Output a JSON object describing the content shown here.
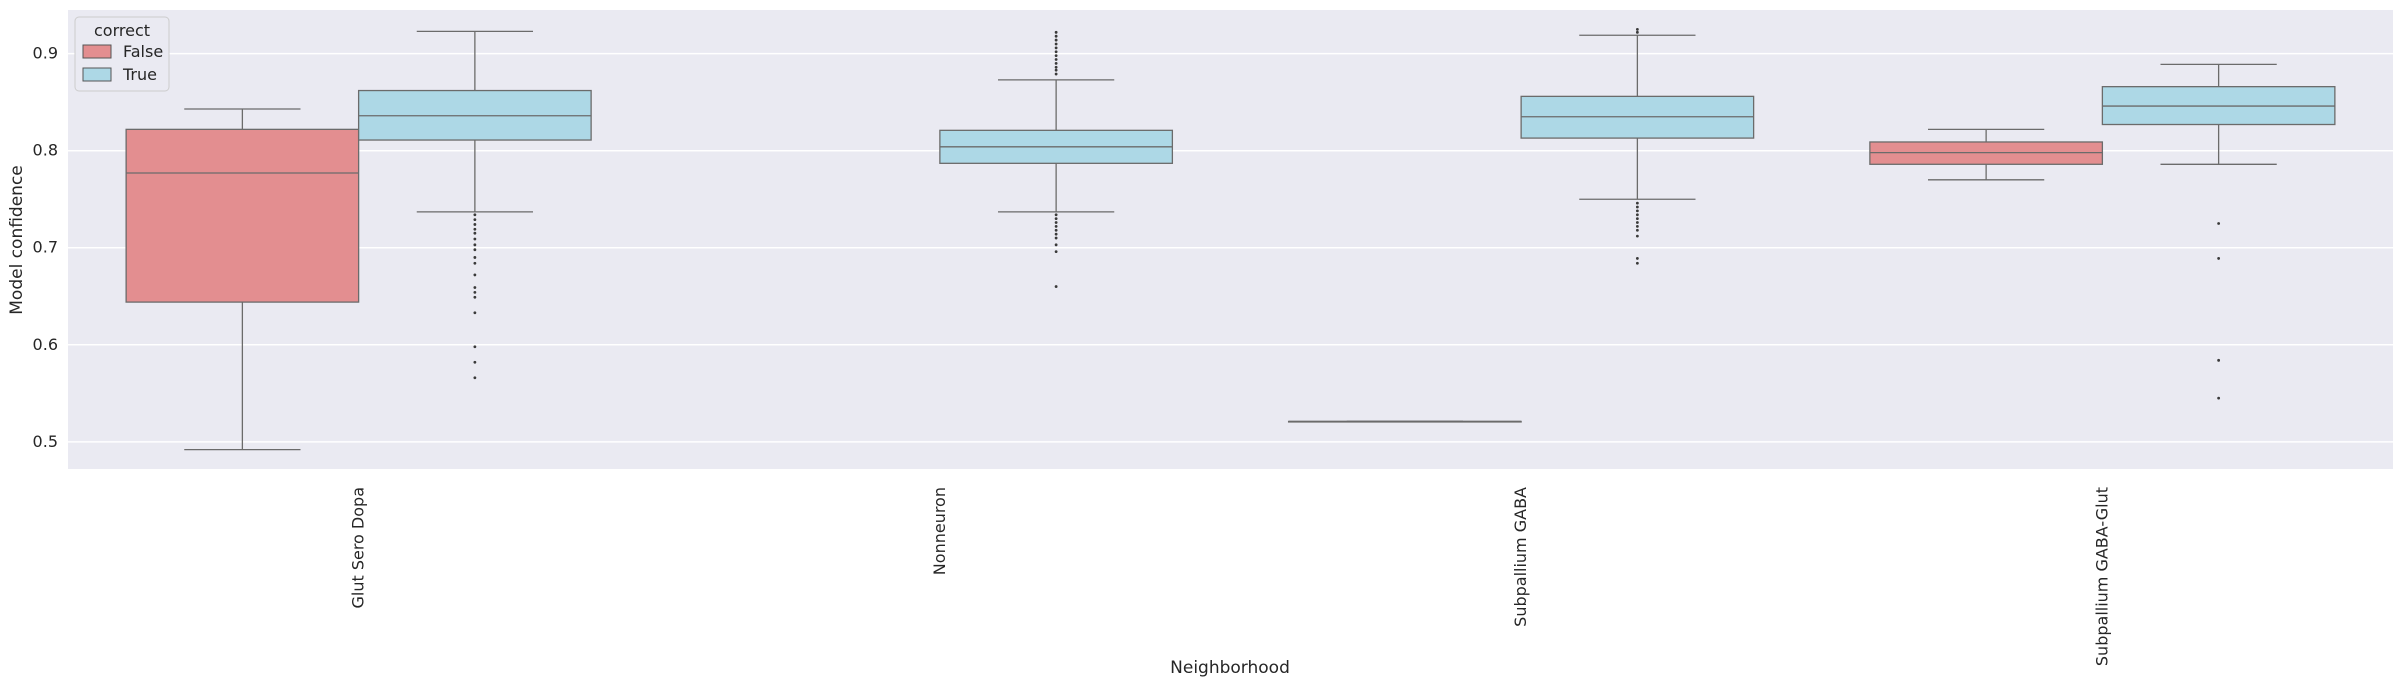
{
  "chart_data": {
    "type": "box",
    "xlabel": "Neighborhood",
    "ylabel": "Model confidence",
    "ylim": [
      0.472,
      0.945
    ],
    "yticks": [
      0.5,
      0.6,
      0.7,
      0.8,
      0.9
    ],
    "ytick_labels": [
      "0.5",
      "0.6",
      "0.7",
      "0.8",
      "0.9"
    ],
    "grid": true,
    "legend": {
      "title": "correct",
      "placement": "top-left"
    },
    "categories": [
      "Glut Sero Dopa",
      "Nonneuron",
      "Subpallium GABA",
      "Subpallium GABA-Glut"
    ],
    "series": [
      {
        "name": "False",
        "color": "#e38e90",
        "boxes": [
          {
            "category": "Glut Sero Dopa",
            "whislo": 0.492,
            "q1": 0.644,
            "median": 0.777,
            "q3": 0.822,
            "whishi": 0.843,
            "fliers": []
          },
          null,
          {
            "category": "Subpallium GABA",
            "whislo": 0.521,
            "q1": 0.521,
            "median": 0.521,
            "q3": 0.521,
            "whishi": 0.521,
            "fliers": []
          },
          {
            "category": "Subpallium GABA-Glut",
            "whislo": 0.77,
            "q1": 0.786,
            "median": 0.798,
            "q3": 0.809,
            "whishi": 0.822,
            "fliers": []
          }
        ]
      },
      {
        "name": "True",
        "color": "#add8e6",
        "boxes": [
          {
            "category": "Glut Sero Dopa",
            "whislo": 0.737,
            "q1": 0.811,
            "median": 0.836,
            "q3": 0.862,
            "whishi": 0.923,
            "fliers": [
              0.734,
              0.729,
              0.724,
              0.719,
              0.715,
              0.709,
              0.703,
              0.698,
              0.69,
              0.684,
              0.672,
              0.659,
              0.654,
              0.649,
              0.633,
              0.598,
              0.582,
              0.566
            ]
          },
          {
            "category": "Nonneuron",
            "whislo": 0.737,
            "q1": 0.787,
            "median": 0.804,
            "q3": 0.821,
            "whishi": 0.873,
            "fliers": [
              0.922,
              0.918,
              0.914,
              0.91,
              0.906,
              0.902,
              0.898,
              0.894,
              0.89,
              0.886,
              0.883,
              0.879,
              0.734,
              0.73,
              0.726,
              0.722,
              0.718,
              0.714,
              0.71,
              0.703,
              0.696,
              0.66
            ]
          },
          {
            "category": "Subpallium GABA",
            "whislo": 0.75,
            "q1": 0.813,
            "median": 0.835,
            "q3": 0.856,
            "whishi": 0.919,
            "fliers": [
              0.925,
              0.922,
              0.746,
              0.742,
              0.738,
              0.734,
              0.73,
              0.726,
              0.722,
              0.718,
              0.712,
              0.689,
              0.684
            ]
          },
          {
            "category": "Subpallium GABA-Glut",
            "whislo": 0.786,
            "q1": 0.827,
            "median": 0.846,
            "q3": 0.866,
            "whishi": 0.889,
            "fliers": [
              0.725,
              0.689,
              0.584,
              0.545
            ]
          }
        ]
      }
    ]
  }
}
